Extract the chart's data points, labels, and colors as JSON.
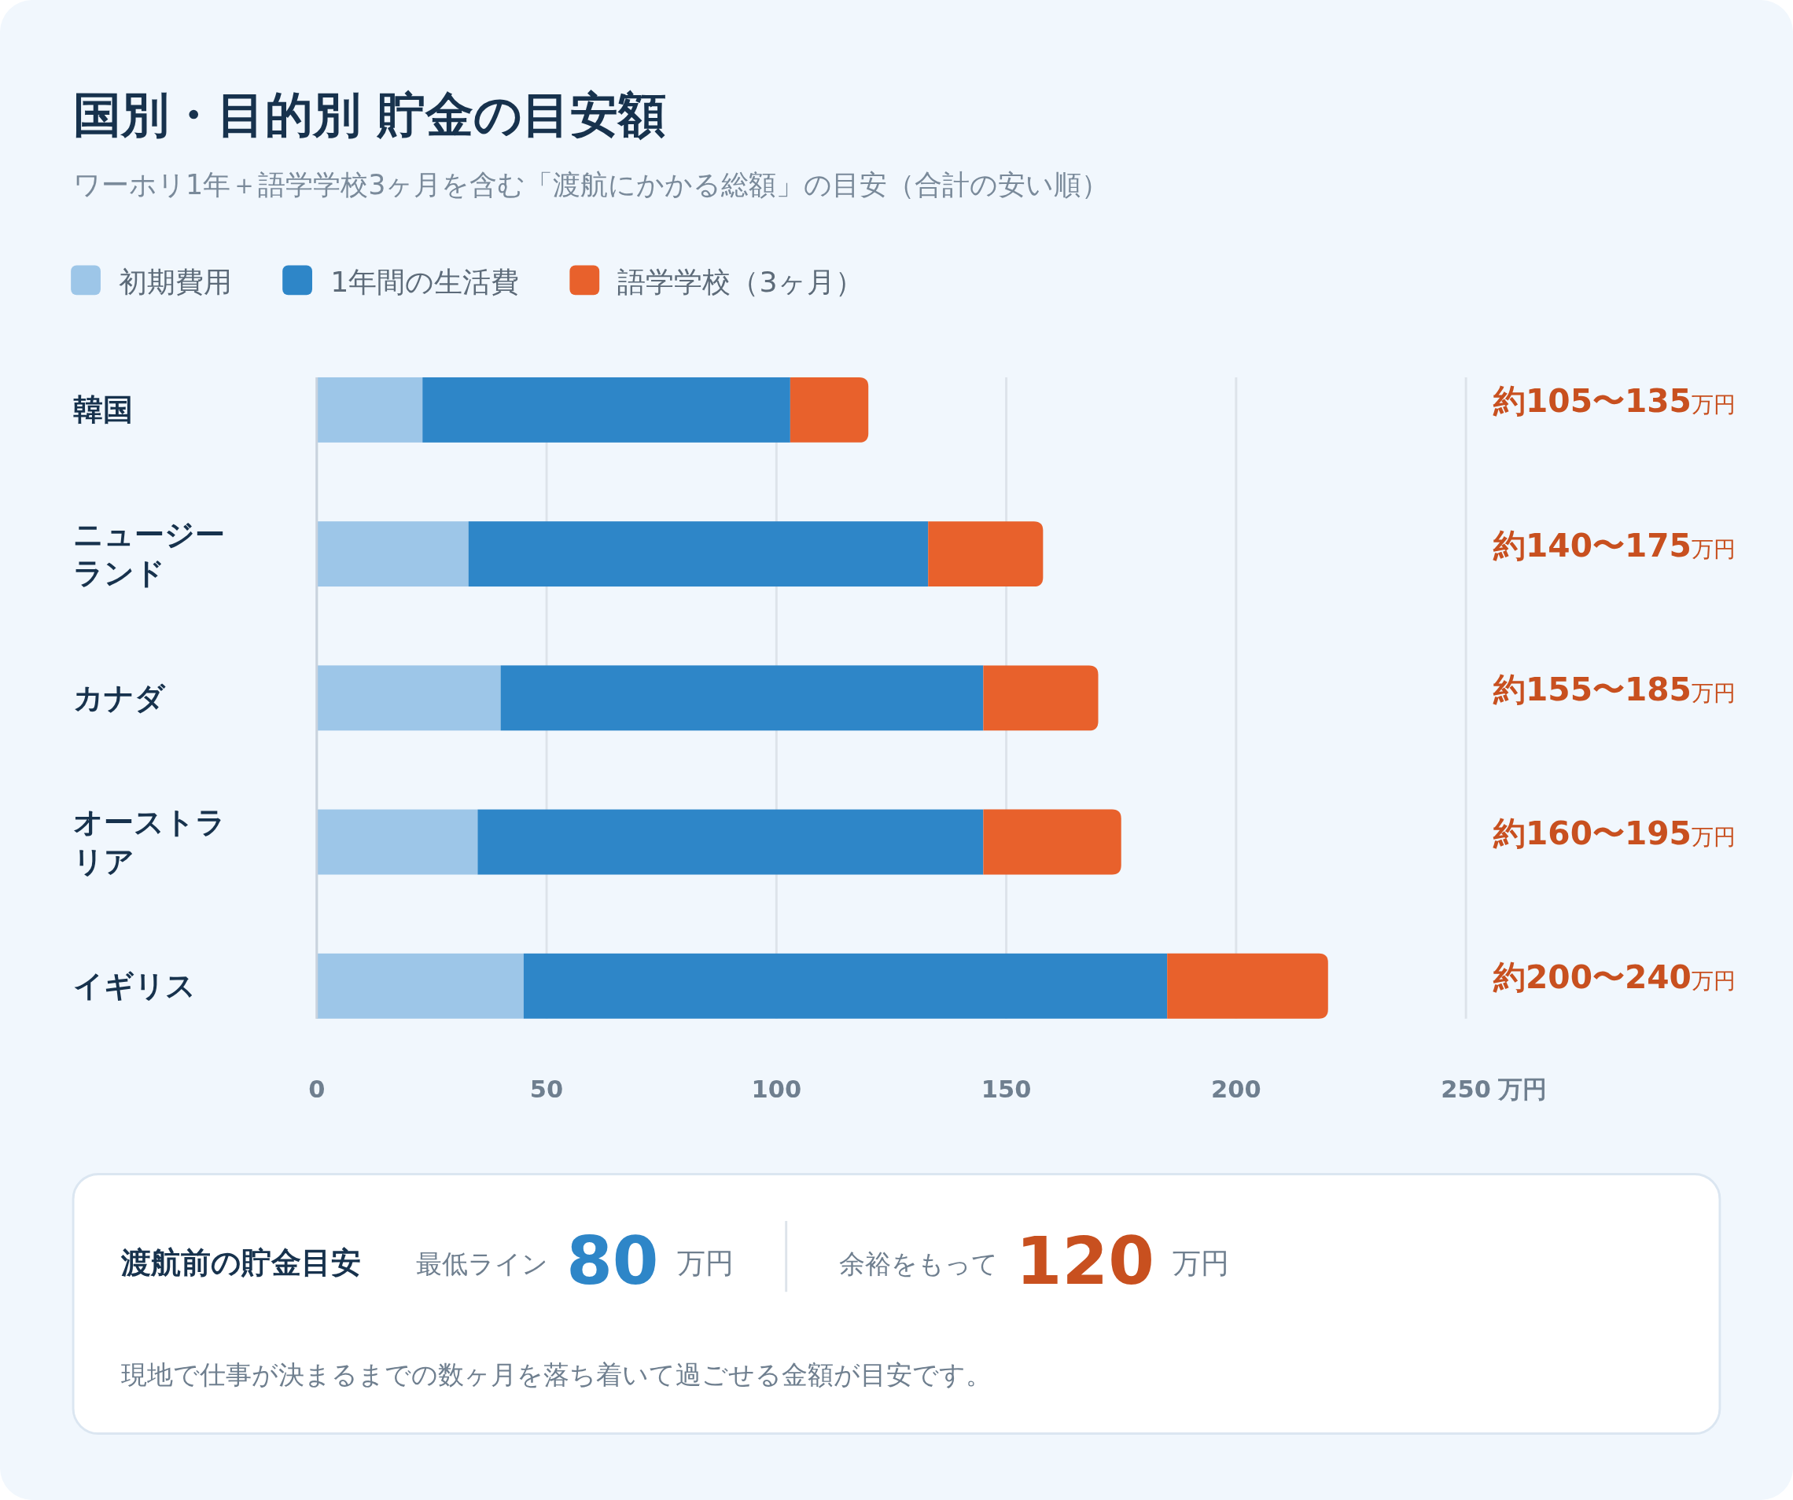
{
  "chart_data": {
    "type": "bar",
    "orientation": "horizontal",
    "stacked": true,
    "title": "国別・目的別 貯金の目安額",
    "subtitle": "ワーホリ1年＋語学学校3ヶ月を含む「渡航にかかる総額」の目安（合計の安い順）",
    "categories": [
      "韓国",
      "ニュージーランド",
      "カナダ",
      "オーストラリア",
      "イギリス"
    ],
    "series": [
      {
        "name": "初期費用",
        "color": "#9dc6e8",
        "values": [
          23,
          33,
          40,
          35,
          45
        ]
      },
      {
        "name": "1年間の生活費",
        "color": "#2e86c8",
        "values": [
          80,
          100,
          105,
          110,
          140
        ]
      },
      {
        "name": "語学学校（3ヶ月）",
        "color": "#e8612c",
        "values": [
          17,
          25,
          25,
          30,
          35
        ]
      }
    ],
    "xlim": [
      0,
      250
    ],
    "xticks": [
      0,
      50,
      100,
      150,
      200,
      250
    ],
    "xlabel": "万円",
    "grid": "x",
    "legend": "top left",
    "annotations": [
      "約105〜135万円",
      "約140〜175万円",
      "約155〜185万円",
      "約160〜195万円",
      "約200〜240万円",
      "渡航前の貯金目安",
      "最低ライン",
      "80",
      "万円",
      "余裕をもって",
      "120",
      "万円",
      "現地で仕事が決まるまでの数ヶ月を落ち着いて過ごせる金額が目安です。"
    ]
  }
}
